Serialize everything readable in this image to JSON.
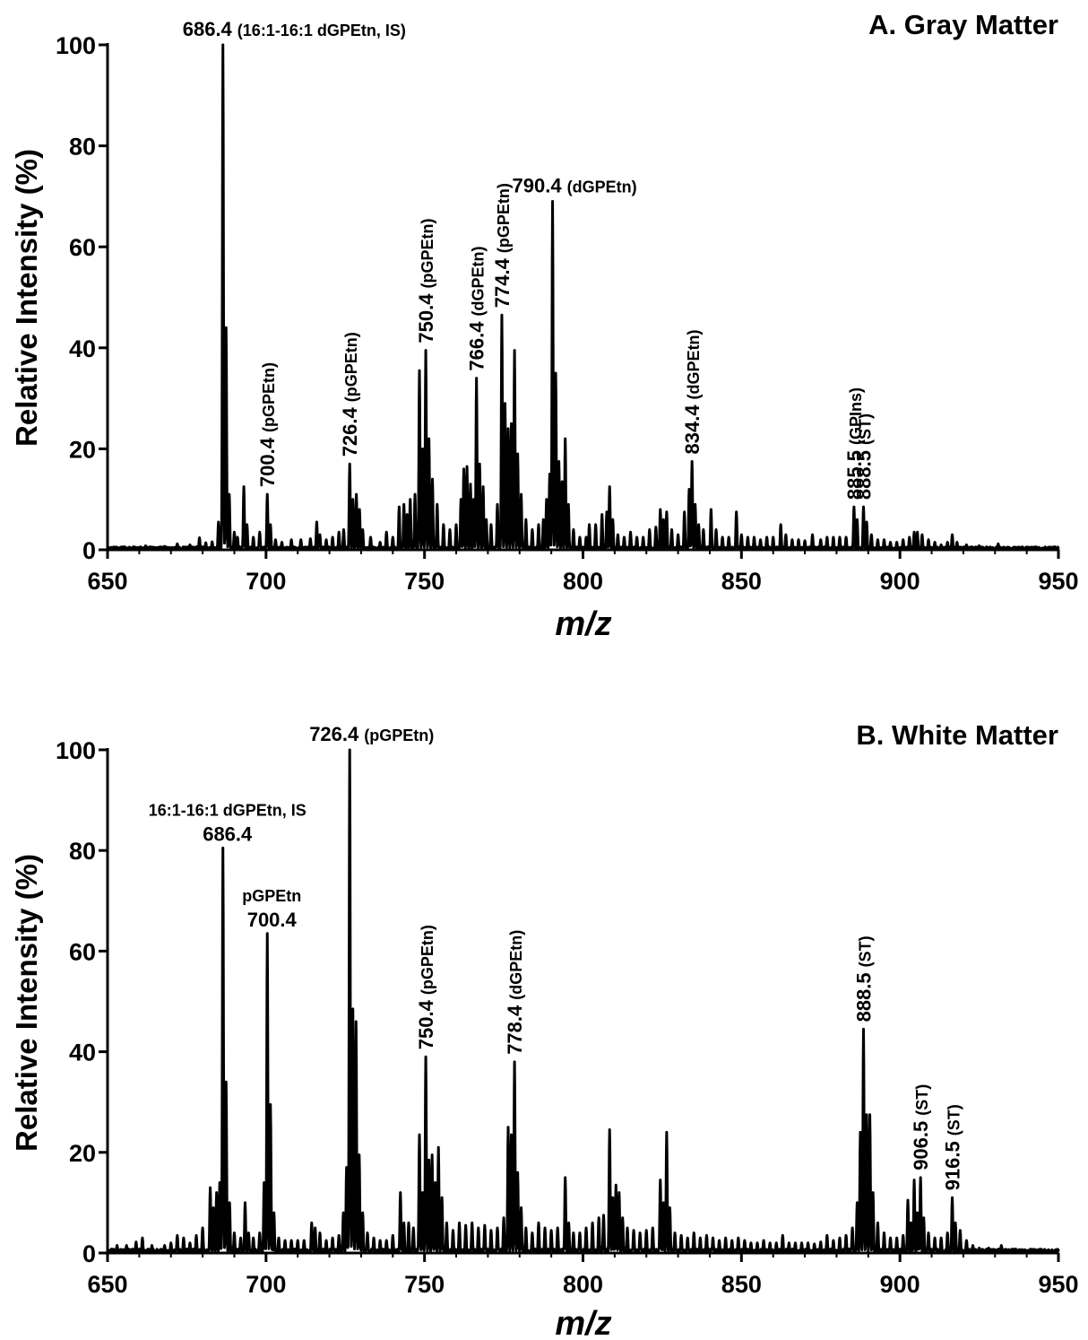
{
  "chart_data": [
    {
      "type": "line",
      "title": "A. Gray Matter",
      "xlabel": "m/z",
      "ylabel": "Relative Intensity (%)",
      "xlim": [
        650,
        950
      ],
      "ylim": [
        0,
        100
      ],
      "xticks": [
        650,
        700,
        750,
        800,
        850,
        900,
        950
      ],
      "yticks": [
        0,
        20,
        40,
        60,
        80,
        100
      ],
      "grid": false,
      "baseline_noise": 0.6,
      "peaks": [
        [
          662,
          0.8
        ],
        [
          668,
          0.7
        ],
        [
          672,
          1.2
        ],
        [
          676,
          1.0
        ],
        [
          679,
          2.4
        ],
        [
          681,
          1.4
        ],
        [
          683,
          1.6
        ],
        [
          685,
          5.5
        ],
        [
          686.4,
          100
        ],
        [
          687.4,
          44
        ],
        [
          688.4,
          11
        ],
        [
          690,
          3.5
        ],
        [
          691,
          2.5
        ],
        [
          693,
          12.5
        ],
        [
          694,
          5
        ],
        [
          696,
          2.5
        ],
        [
          698,
          3.5
        ],
        [
          700.4,
          11
        ],
        [
          701.4,
          5
        ],
        [
          703,
          2
        ],
        [
          705,
          1.5
        ],
        [
          708,
          2
        ],
        [
          711,
          2
        ],
        [
          714,
          2.2
        ],
        [
          716,
          5.5
        ],
        [
          717,
          3
        ],
        [
          719,
          2
        ],
        [
          721,
          2.5
        ],
        [
          723,
          3.5
        ],
        [
          724.5,
          4
        ],
        [
          726.4,
          17
        ],
        [
          727.4,
          10
        ],
        [
          728.5,
          11
        ],
        [
          729.5,
          8
        ],
        [
          730.5,
          4
        ],
        [
          733,
          2.5
        ],
        [
          736,
          1.5
        ],
        [
          738,
          3.5
        ],
        [
          740,
          2.5
        ],
        [
          742,
          8.5
        ],
        [
          743.5,
          9
        ],
        [
          744.5,
          7
        ],
        [
          745.5,
          10
        ],
        [
          747,
          11
        ],
        [
          748.4,
          35.5
        ],
        [
          749.4,
          20
        ],
        [
          750.4,
          39.5
        ],
        [
          751.4,
          22
        ],
        [
          752.5,
          14
        ],
        [
          754,
          9
        ],
        [
          756,
          5
        ],
        [
          758,
          4
        ],
        [
          760,
          5
        ],
        [
          761.5,
          10
        ],
        [
          762.4,
          16
        ],
        [
          763.4,
          16.5
        ],
        [
          764.5,
          13
        ],
        [
          765.5,
          10
        ],
        [
          766.4,
          34
        ],
        [
          767.4,
          17
        ],
        [
          768.5,
          12.5
        ],
        [
          769.5,
          6
        ],
        [
          771,
          5
        ],
        [
          773,
          9
        ],
        [
          774.4,
          46.5
        ],
        [
          775.4,
          29
        ],
        [
          776.4,
          24
        ],
        [
          777.4,
          25
        ],
        [
          778.4,
          39.5
        ],
        [
          779.4,
          19
        ],
        [
          780.5,
          11
        ],
        [
          782,
          6
        ],
        [
          784,
          4
        ],
        [
          786,
          5
        ],
        [
          787.5,
          6
        ],
        [
          788.5,
          10
        ],
        [
          789.5,
          15
        ],
        [
          790.4,
          69
        ],
        [
          791.4,
          35
        ],
        [
          792.4,
          17.5
        ],
        [
          793.4,
          13.5
        ],
        [
          794.4,
          22
        ],
        [
          795.4,
          9
        ],
        [
          797,
          4
        ],
        [
          799,
          2.5
        ],
        [
          801,
          2.5
        ],
        [
          802,
          5
        ],
        [
          804,
          5
        ],
        [
          806,
          7
        ],
        [
          807.5,
          7.5
        ],
        [
          808.4,
          12.5
        ],
        [
          809.4,
          6
        ],
        [
          811,
          3
        ],
        [
          813,
          2.5
        ],
        [
          815,
          3.5
        ],
        [
          817,
          2.5
        ],
        [
          819,
          2.5
        ],
        [
          821,
          4
        ],
        [
          823,
          4.5
        ],
        [
          824.4,
          8
        ],
        [
          825.4,
          6
        ],
        [
          826.4,
          7.5
        ],
        [
          828,
          4
        ],
        [
          830,
          3
        ],
        [
          832,
          7.5
        ],
        [
          833.5,
          12
        ],
        [
          834.4,
          17.5
        ],
        [
          835.4,
          9
        ],
        [
          836.5,
          5
        ],
        [
          838,
          4
        ],
        [
          840.4,
          8
        ],
        [
          842,
          4
        ],
        [
          844,
          2.5
        ],
        [
          846,
          2.5
        ],
        [
          848.4,
          7.5
        ],
        [
          850,
          3
        ],
        [
          852,
          2.5
        ],
        [
          854,
          2.5
        ],
        [
          856,
          2
        ],
        [
          858,
          2.5
        ],
        [
          860,
          2.5
        ],
        [
          862.4,
          5
        ],
        [
          864,
          3
        ],
        [
          866,
          2
        ],
        [
          868,
          2
        ],
        [
          870,
          1.8
        ],
        [
          872.4,
          3
        ],
        [
          875,
          2
        ],
        [
          877,
          2.5
        ],
        [
          879,
          2.5
        ],
        [
          881,
          2.5
        ],
        [
          883,
          2.5
        ],
        [
          885.5,
          8.5
        ],
        [
          886.5,
          6
        ],
        [
          888.5,
          8.5
        ],
        [
          889.5,
          5.5
        ],
        [
          891,
          3
        ],
        [
          893,
          2
        ],
        [
          895,
          2
        ],
        [
          897,
          1.5
        ],
        [
          899,
          1.5
        ],
        [
          901,
          2
        ],
        [
          903,
          2.5
        ],
        [
          904.5,
          3.5
        ],
        [
          905.5,
          3.5
        ],
        [
          907,
          3
        ],
        [
          909,
          2
        ],
        [
          911,
          1.5
        ],
        [
          913,
          1
        ],
        [
          915,
          1.5
        ],
        [
          916.5,
          3
        ],
        [
          918,
          1.5
        ],
        [
          921,
          1
        ],
        [
          925,
          0.8
        ],
        [
          931,
          1.2
        ]
      ],
      "annotations": [
        {
          "x": 686.4,
          "y": 100,
          "orient": "h",
          "num": "686.4",
          "sub": "(16:1-16:1 dGPEtn, IS)"
        },
        {
          "x": 700.4,
          "y": 11,
          "orient": "v",
          "num": "700.4",
          "sub": "(pGPEtn)"
        },
        {
          "x": 726.4,
          "y": 17,
          "orient": "v",
          "num": "726.4",
          "sub": "(pGPEtn)"
        },
        {
          "x": 750.4,
          "y": 39.5,
          "orient": "v",
          "num": "750.4",
          "sub": "(pGPEtn)"
        },
        {
          "x": 766.4,
          "y": 34,
          "orient": "v",
          "num": "766.4",
          "sub": "(dGPEtn)"
        },
        {
          "x": 774.4,
          "y": 46.5,
          "orient": "v",
          "num": "774.4",
          "sub": "(pGPEtn)"
        },
        {
          "x": 790.4,
          "y": 69,
          "orient": "h",
          "num": "790.4",
          "sub": "(dGPEtn)"
        },
        {
          "x": 834.4,
          "y": 17.5,
          "orient": "v",
          "num": "834.4",
          "sub": "(dGPEtn)"
        },
        {
          "x": 885.5,
          "y": 8.5,
          "orient": "v",
          "num": "885.5",
          "sub": "(GPIns)"
        },
        {
          "x": 888.5,
          "y": 8.5,
          "orient": "v",
          "num": "888.5",
          "sub": "(ST)"
        }
      ]
    },
    {
      "type": "line",
      "title": "B. White Matter",
      "xlabel": "m/z",
      "ylabel": "Relative Intensity (%)",
      "xlim": [
        650,
        950
      ],
      "ylim": [
        0,
        100
      ],
      "xticks": [
        650,
        700,
        750,
        800,
        850,
        900,
        950
      ],
      "yticks": [
        0,
        20,
        40,
        60,
        80,
        100
      ],
      "grid": false,
      "baseline_noise": 0.8,
      "peaks": [
        [
          653,
          1.5
        ],
        [
          656,
          1.5
        ],
        [
          659,
          2.2
        ],
        [
          661,
          3
        ],
        [
          664,
          1.5
        ],
        [
          668,
          1.5
        ],
        [
          670,
          2
        ],
        [
          672,
          3.5
        ],
        [
          674,
          3
        ],
        [
          676,
          2
        ],
        [
          678,
          3.5
        ],
        [
          680,
          5
        ],
        [
          682.4,
          13
        ],
        [
          683.4,
          9
        ],
        [
          684.4,
          12
        ],
        [
          685.4,
          14
        ],
        [
          686.4,
          80.5
        ],
        [
          687.4,
          34
        ],
        [
          688.5,
          10
        ],
        [
          690,
          4
        ],
        [
          692,
          3
        ],
        [
          693.4,
          10
        ],
        [
          694.5,
          4
        ],
        [
          696,
          3
        ],
        [
          698,
          4
        ],
        [
          699.4,
          14
        ],
        [
          700.4,
          63.5
        ],
        [
          701.4,
          29.5
        ],
        [
          702.5,
          8
        ],
        [
          704,
          3
        ],
        [
          706,
          2.5
        ],
        [
          708,
          2.5
        ],
        [
          710,
          2.5
        ],
        [
          712,
          2.5
        ],
        [
          714.4,
          6
        ],
        [
          715.5,
          5
        ],
        [
          717,
          4
        ],
        [
          719,
          2.5
        ],
        [
          721,
          3
        ],
        [
          723,
          3.5
        ],
        [
          724.4,
          8
        ],
        [
          725.4,
          17
        ],
        [
          726.4,
          100
        ],
        [
          727.4,
          48.5
        ],
        [
          728.4,
          46
        ],
        [
          729.4,
          19.5
        ],
        [
          730.5,
          8
        ],
        [
          732,
          4
        ],
        [
          734,
          3
        ],
        [
          736,
          2.5
        ],
        [
          738,
          2.5
        ],
        [
          740,
          3.5
        ],
        [
          742.4,
          12
        ],
        [
          743.5,
          6
        ],
        [
          745,
          6
        ],
        [
          746.5,
          5
        ],
        [
          748.4,
          23.5
        ],
        [
          749.4,
          12
        ],
        [
          750.4,
          39
        ],
        [
          751.4,
          18.5
        ],
        [
          752.4,
          19.5
        ],
        [
          753.4,
          14
        ],
        [
          754.4,
          21
        ],
        [
          755.5,
          11
        ],
        [
          757,
          6
        ],
        [
          759,
          4.5
        ],
        [
          761,
          6
        ],
        [
          763,
          5.5
        ],
        [
          765,
          6
        ],
        [
          767,
          5
        ],
        [
          769,
          5.5
        ],
        [
          771,
          4.5
        ],
        [
          773,
          5
        ],
        [
          775,
          7
        ],
        [
          776.4,
          25
        ],
        [
          777.4,
          23.5
        ],
        [
          778.4,
          38
        ],
        [
          779.4,
          16
        ],
        [
          780.5,
          9
        ],
        [
          782,
          5
        ],
        [
          784,
          4
        ],
        [
          786,
          6
        ],
        [
          788,
          5
        ],
        [
          790,
          4.5
        ],
        [
          792,
          5
        ],
        [
          794.4,
          15
        ],
        [
          795.5,
          6
        ],
        [
          797,
          4
        ],
        [
          799,
          4
        ],
        [
          801,
          5
        ],
        [
          803,
          6
        ],
        [
          805,
          7
        ],
        [
          806.5,
          7.5
        ],
        [
          808.4,
          24.5
        ],
        [
          809.4,
          11
        ],
        [
          810.4,
          13.5
        ],
        [
          811.4,
          12
        ],
        [
          812.5,
          7
        ],
        [
          814,
          5
        ],
        [
          816,
          4.5
        ],
        [
          818,
          4
        ],
        [
          820,
          4.5
        ],
        [
          822,
          5
        ],
        [
          824.4,
          14.5
        ],
        [
          825.4,
          10
        ],
        [
          826.4,
          24
        ],
        [
          827.4,
          9
        ],
        [
          829,
          4
        ],
        [
          831,
          3.5
        ],
        [
          833,
          3
        ],
        [
          835,
          4
        ],
        [
          837,
          3
        ],
        [
          839,
          3.5
        ],
        [
          841,
          3
        ],
        [
          843,
          2.5
        ],
        [
          845,
          3
        ],
        [
          847,
          2.5
        ],
        [
          849,
          3
        ],
        [
          851,
          2.5
        ],
        [
          853,
          2
        ],
        [
          855,
          2
        ],
        [
          857,
          2.5
        ],
        [
          859,
          2
        ],
        [
          861,
          2
        ],
        [
          863,
          3.5
        ],
        [
          865,
          2
        ],
        [
          867,
          2
        ],
        [
          869,
          2
        ],
        [
          871,
          2
        ],
        [
          873,
          1.8
        ],
        [
          875,
          2.2
        ],
        [
          877,
          3.5
        ],
        [
          879,
          2.5
        ],
        [
          881,
          3
        ],
        [
          883,
          3.5
        ],
        [
          885,
          5
        ],
        [
          886.5,
          10
        ],
        [
          887.5,
          24
        ],
        [
          888.5,
          44.5
        ],
        [
          889.5,
          27.5
        ],
        [
          890.5,
          27.5
        ],
        [
          891.5,
          12
        ],
        [
          893,
          6
        ],
        [
          895,
          4
        ],
        [
          897,
          3
        ],
        [
          899,
          3
        ],
        [
          901,
          3.5
        ],
        [
          902.5,
          10.5
        ],
        [
          903.5,
          6
        ],
        [
          904.5,
          14.5
        ],
        [
          905.5,
          8
        ],
        [
          906.5,
          15
        ],
        [
          907.5,
          7
        ],
        [
          909,
          4
        ],
        [
          911,
          3
        ],
        [
          913,
          3
        ],
        [
          915,
          4
        ],
        [
          916.5,
          11
        ],
        [
          917.5,
          6
        ],
        [
          919,
          4.5
        ],
        [
          921,
          2.5
        ],
        [
          923,
          1.5
        ],
        [
          925,
          1
        ],
        [
          928,
          1
        ],
        [
          932,
          1.5
        ],
        [
          936,
          0.8
        ]
      ],
      "annotations": [
        {
          "x": 686.4,
          "y": 80.5,
          "orient": "stack",
          "num": "686.4",
          "sub": "16:1-16:1 dGPEtn, IS"
        },
        {
          "x": 700.4,
          "y": 63.5,
          "orient": "stack",
          "num": "700.4",
          "sub": "pGPEtn"
        },
        {
          "x": 726.4,
          "y": 100,
          "orient": "h",
          "num": "726.4",
          "sub": "(pGPEtn)"
        },
        {
          "x": 750.4,
          "y": 39,
          "orient": "v",
          "num": "750.4",
          "sub": "(pGPEtn)"
        },
        {
          "x": 778.4,
          "y": 38,
          "orient": "v",
          "num": "778.4",
          "sub": "(dGPEtn)"
        },
        {
          "x": 888.5,
          "y": 44.5,
          "orient": "v",
          "num": "888.5",
          "sub": "(ST)"
        },
        {
          "x": 906.5,
          "y": 15,
          "orient": "v",
          "num": "906.5",
          "sub": "(ST)"
        },
        {
          "x": 916.5,
          "y": 11,
          "orient": "v",
          "num": "916.5",
          "sub": "(ST)"
        }
      ]
    }
  ]
}
